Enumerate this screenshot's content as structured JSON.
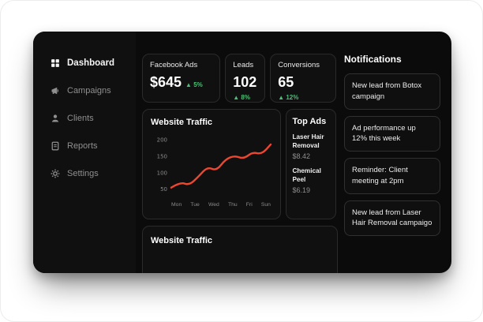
{
  "colors": {
    "green": "#4fbf77",
    "chart_line": "#ef4630"
  },
  "sidebar": {
    "items": [
      {
        "label": "Dashboard"
      },
      {
        "label": "Campaigns"
      },
      {
        "label": "Clients"
      },
      {
        "label": "Reports"
      },
      {
        "label": "Settings"
      }
    ]
  },
  "stats": {
    "facebook": {
      "title": "Facebook Ads",
      "value": "$645",
      "delta": "▲ 5%"
    },
    "leads": {
      "title": "Leads",
      "value": "102",
      "delta": "▲ 8%"
    },
    "conversions": {
      "title": "Conversions",
      "value": "65",
      "delta": "▲ 12%"
    }
  },
  "traffic_card": {
    "title": "Website Traffic"
  },
  "top_ads": {
    "title": "Top Ads",
    "items": [
      {
        "name": "Laser Hair Removal",
        "price": "$8.42"
      },
      {
        "name": "Chemical Peel",
        "price": "$6.19"
      }
    ]
  },
  "bottom_card": {
    "title": "Website Traffic"
  },
  "notifications": {
    "title": "Notifications",
    "items": [
      {
        "text": "New lead from Botox campaign"
      },
      {
        "text": "Ad performance up 12% this week"
      },
      {
        "text": "Reminder: Client meeting at 2pm"
      },
      {
        "text": "New lead from Laser Hair Removal campaigo"
      }
    ]
  },
  "chart_data": {
    "type": "line",
    "title": "Website Traffic",
    "categories": [
      "Mon",
      "Tue",
      "Wed",
      "Thu",
      "Fri",
      "Sun"
    ],
    "values": [
      55,
      70,
      115,
      150,
      160,
      185
    ],
    "detail_points": [
      55,
      72,
      62,
      88,
      118,
      106,
      141,
      152,
      142,
      163,
      156,
      186
    ],
    "yticks": [
      200,
      150,
      100,
      50
    ],
    "ylim": [
      35,
      210
    ],
    "xlabel": "",
    "ylabel": "",
    "line_color": "#ef4630",
    "grid": false,
    "legend": false
  }
}
